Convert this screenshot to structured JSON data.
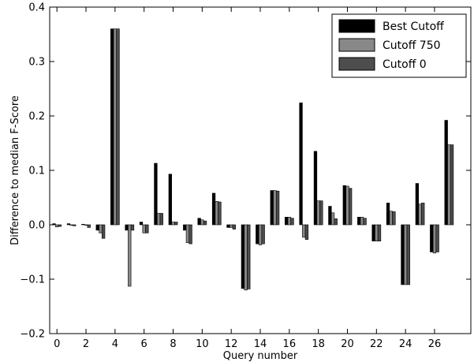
{
  "chart_data": {
    "type": "bar",
    "title": "",
    "xlabel": "Query number",
    "ylabel": "Difference to median F-Score",
    "ylim": [
      -0.2,
      0.4
    ],
    "xlim": [
      -0.5,
      28.5
    ],
    "yticks": [
      -0.2,
      -0.1,
      0.0,
      0.1,
      0.2,
      0.3,
      0.4
    ],
    "ytick_labels": [
      "−0.2",
      "−0.1",
      "0.0",
      "0.1",
      "0.2",
      "0.3",
      "0.4"
    ],
    "xticks": [
      0,
      2,
      4,
      6,
      8,
      10,
      12,
      14,
      16,
      18,
      20,
      22,
      24,
      26
    ],
    "xtick_labels": [
      "0",
      "2",
      "4",
      "6",
      "8",
      "10",
      "12",
      "14",
      "16",
      "18",
      "20",
      "22",
      "24",
      "26"
    ],
    "grid": false,
    "legend_position": "top-right",
    "categories": [
      0,
      1,
      2,
      3,
      4,
      5,
      6,
      7,
      8,
      9,
      10,
      11,
      12,
      13,
      14,
      15,
      16,
      17,
      18,
      19,
      20,
      21,
      22,
      23,
      24,
      25,
      26
    ],
    "series": [
      {
        "name": "Best Cutoff",
        "color": "#000000",
        "values": [
          0.002,
          0.002,
          0.001,
          -0.01,
          0.36,
          -0.01,
          0.005,
          0.113,
          0.093,
          -0.01,
          0.012,
          0.058,
          -0.005,
          -0.117,
          -0.035,
          0.063,
          0.014,
          0.224,
          0.135,
          0.034,
          0.072,
          0.014,
          -0.03,
          0.04,
          -0.11,
          0.076,
          -0.05
        ]
      },
      {
        "name": "Cutoff 750",
        "color": "#888888",
        "values": [
          -0.004,
          0.0,
          0.0,
          -0.015,
          0.36,
          -0.113,
          -0.015,
          0.021,
          0.005,
          -0.033,
          0.009,
          0.043,
          -0.005,
          -0.12,
          -0.037,
          0.063,
          0.014,
          -0.023,
          0.044,
          0.022,
          0.071,
          0.014,
          -0.03,
          0.025,
          -0.11,
          0.038,
          -0.052
        ]
      },
      {
        "name": "Cutoff 0",
        "color": "#4d4d4d",
        "values": [
          -0.003,
          -0.002,
          -0.005,
          -0.025,
          0.36,
          -0.01,
          -0.015,
          0.021,
          0.005,
          -0.035,
          0.007,
          0.042,
          -0.008,
          -0.118,
          -0.035,
          0.062,
          0.012,
          -0.027,
          0.044,
          0.011,
          0.067,
          0.012,
          -0.03,
          0.024,
          -0.11,
          0.04,
          -0.05
        ]
      }
    ],
    "extra_bars": [
      {
        "x": 27,
        "values": [
          0.192,
          0.147,
          0.147
        ]
      }
    ]
  }
}
